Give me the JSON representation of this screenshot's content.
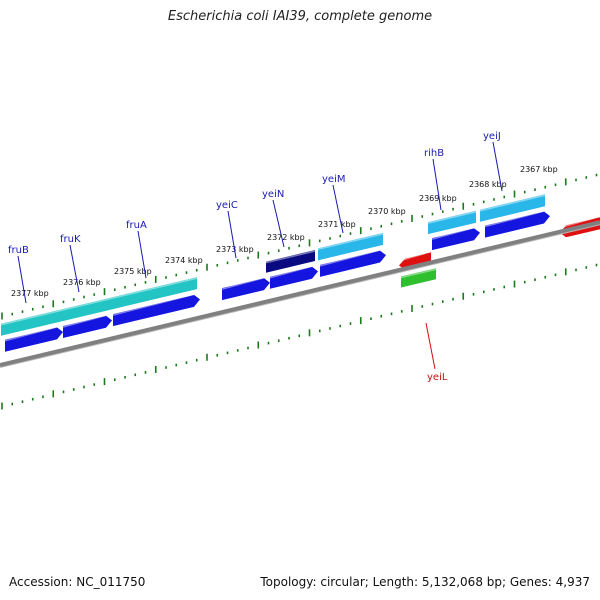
{
  "title": "Escherichia coli IAI39, complete genome",
  "footer": {
    "accession": "Accession: NC_011750",
    "summary": "Topology: circular; Length: 5,132,068 bp; Genes: 4,937"
  },
  "colors": {
    "backbone": "#808080",
    "tick": "#1a7a1a",
    "cds_forward": "#1515e0",
    "cds_forward_dark": "#0a0a80",
    "gene_teal": "#22c4c4",
    "gene_cyan": "#29b6e8",
    "reverse_red": "#e01010",
    "reverse_green": "#2fbf2f",
    "label_blue": "#1a1ab0",
    "label_red": "#cc1010"
  },
  "scale_labels": [
    "2377 kbp",
    "2376 kbp",
    "2375 kbp",
    "2374 kbp",
    "2373 kbp",
    "2372 kbp",
    "2371 kbp",
    "2370 kbp",
    "2369 kbp",
    "2368 kbp",
    "2367 kbp"
  ],
  "genes": [
    {
      "name": "fruB",
      "strand": "forward"
    },
    {
      "name": "fruK",
      "strand": "forward"
    },
    {
      "name": "fruA",
      "strand": "forward"
    },
    {
      "name": "yeiC",
      "strand": "forward"
    },
    {
      "name": "yeiN",
      "strand": "forward"
    },
    {
      "name": "yeiM",
      "strand": "forward"
    },
    {
      "name": "rihB",
      "strand": "forward"
    },
    {
      "name": "yeiJ",
      "strand": "forward"
    },
    {
      "name": "yeiL",
      "strand": "reverse"
    }
  ]
}
